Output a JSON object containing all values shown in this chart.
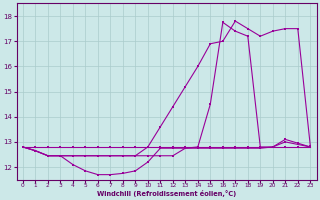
{
  "xlabel": "Windchill (Refroidissement éolien,°C)",
  "bg_color": "#cce8e8",
  "line_color": "#990099",
  "grid_color": "#aacccc",
  "ylim": [
    11.5,
    18.5
  ],
  "xlim": [
    -0.5,
    23.5
  ],
  "yticks": [
    12,
    13,
    14,
    15,
    16,
    17,
    18
  ],
  "xticks": [
    0,
    1,
    2,
    3,
    4,
    5,
    6,
    7,
    8,
    9,
    10,
    11,
    12,
    13,
    14,
    15,
    16,
    17,
    18,
    19,
    20,
    21,
    22,
    23
  ],
  "line_flat_x": [
    0,
    1,
    2,
    3,
    4,
    5,
    6,
    7,
    8,
    9,
    10,
    11,
    12,
    13,
    14,
    15,
    16,
    17,
    18,
    19,
    20,
    21,
    22,
    23
  ],
  "line_flat_y": [
    12.8,
    12.8,
    12.8,
    12.8,
    12.8,
    12.8,
    12.8,
    12.8,
    12.8,
    12.8,
    12.8,
    12.8,
    12.8,
    12.8,
    12.8,
    12.8,
    12.8,
    12.8,
    12.8,
    12.8,
    12.8,
    12.8,
    12.8,
    12.8
  ],
  "line_dip_x": [
    0,
    1,
    2,
    3,
    4,
    5,
    6,
    7,
    8,
    9,
    10,
    11,
    12,
    13,
    14,
    15,
    16,
    17,
    18,
    19,
    20,
    21,
    22,
    23
  ],
  "line_dip_y": [
    12.8,
    12.65,
    12.45,
    12.45,
    12.1,
    11.85,
    11.7,
    11.7,
    11.75,
    11.85,
    12.2,
    12.75,
    12.75,
    12.75,
    12.75,
    12.75,
    12.75,
    12.75,
    12.75,
    12.75,
    12.8,
    13.1,
    12.95,
    12.8
  ],
  "line_rise_x": [
    0,
    1,
    2,
    3,
    4,
    5,
    6,
    7,
    8,
    9,
    10,
    11,
    12,
    13,
    14,
    15,
    16,
    17,
    18,
    19,
    20,
    21,
    22,
    23
  ],
  "line_rise_y": [
    12.8,
    12.65,
    12.45,
    12.45,
    12.45,
    12.45,
    12.45,
    12.45,
    12.45,
    12.45,
    12.8,
    13.6,
    14.4,
    15.2,
    16.0,
    16.9,
    17.0,
    17.8,
    17.5,
    17.2,
    17.4,
    17.5,
    17.5,
    12.85
  ],
  "line_steep_x": [
    0,
    1,
    2,
    3,
    4,
    5,
    6,
    7,
    8,
    9,
    10,
    11,
    12,
    13,
    14,
    15,
    16,
    17,
    18,
    19,
    20,
    21,
    22,
    23
  ],
  "line_steep_y": [
    12.8,
    12.65,
    12.45,
    12.45,
    12.45,
    12.45,
    12.45,
    12.45,
    12.45,
    12.45,
    12.45,
    12.45,
    12.45,
    12.75,
    12.8,
    14.5,
    17.75,
    17.4,
    17.2,
    12.8,
    12.8,
    13.0,
    12.9,
    12.8
  ]
}
